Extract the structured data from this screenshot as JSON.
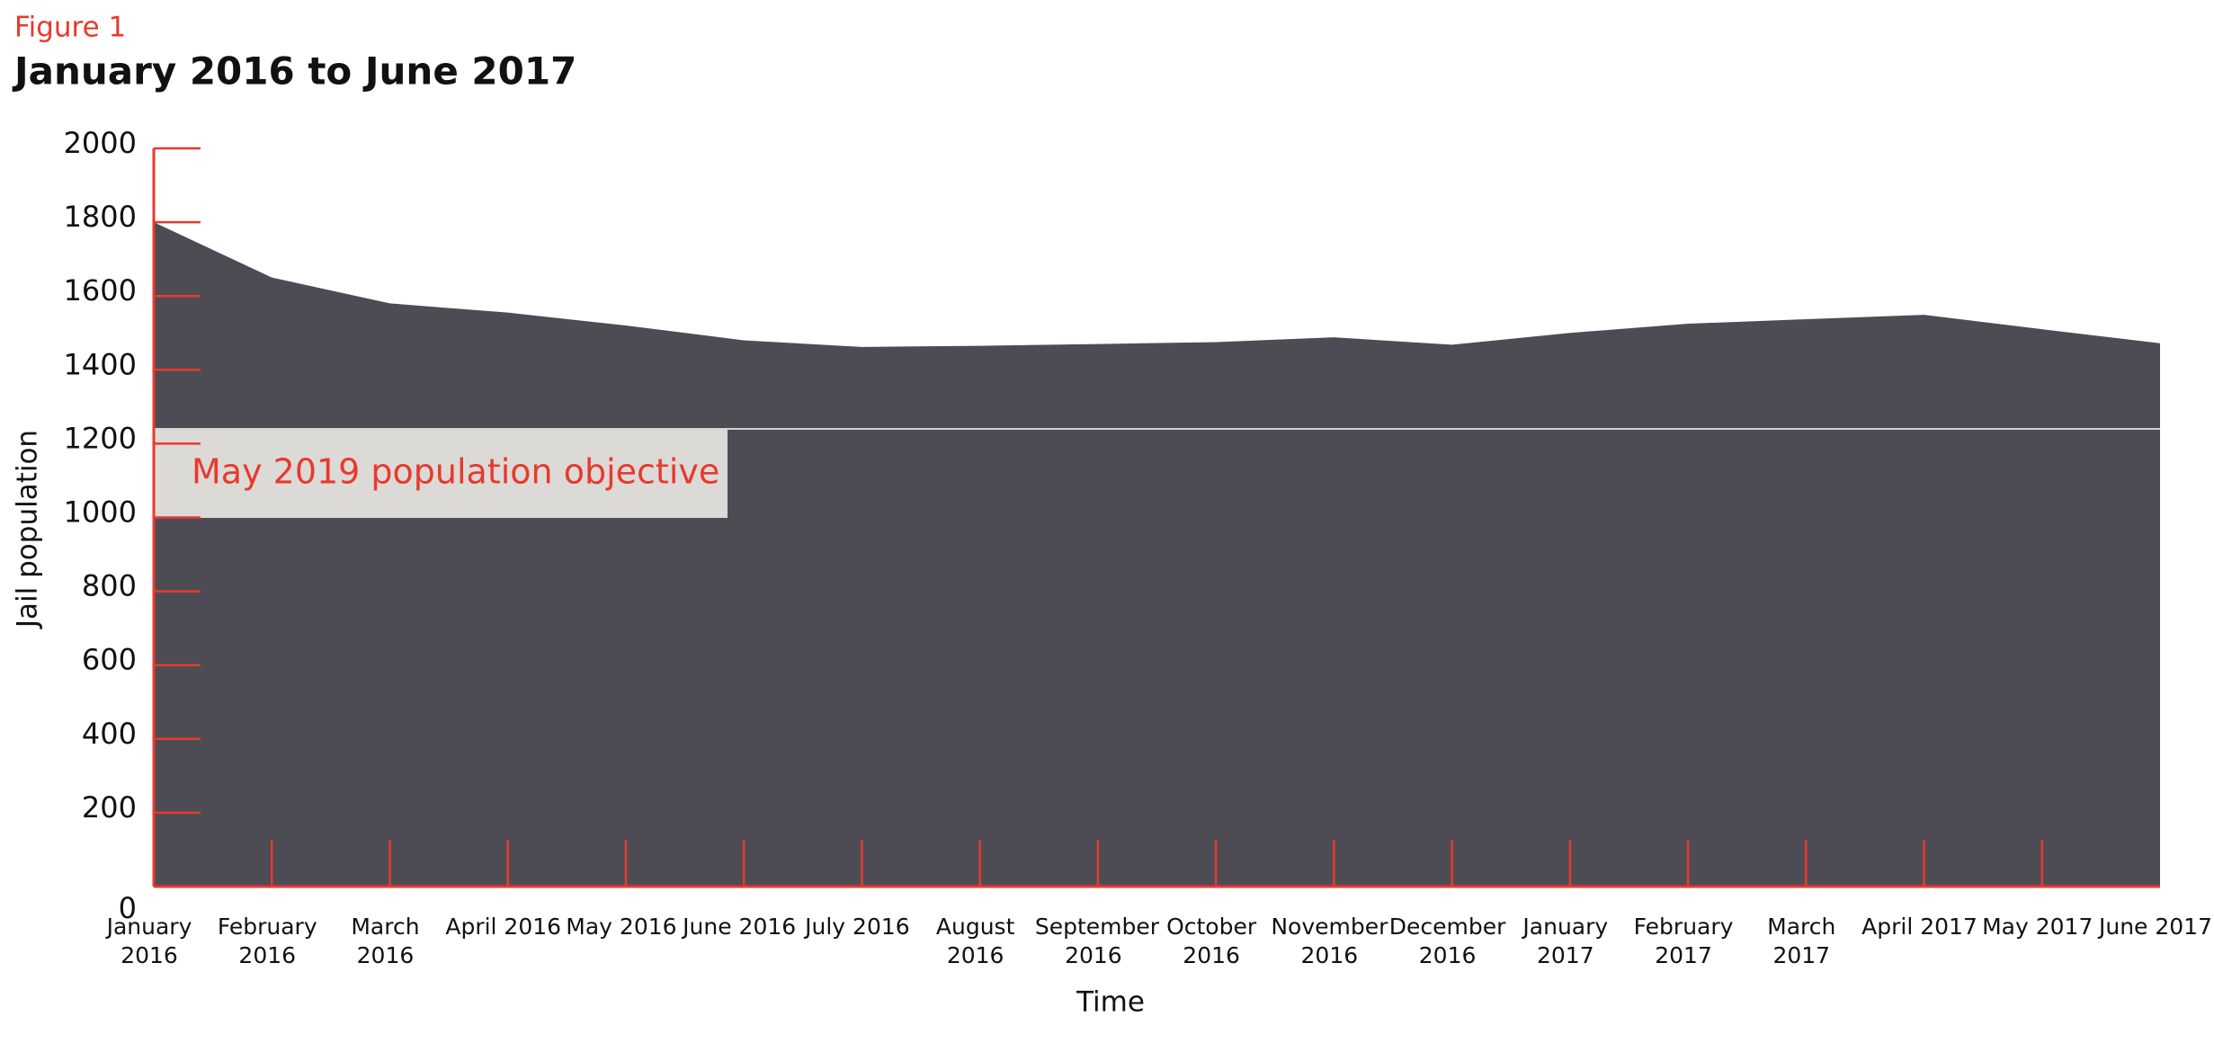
{
  "chart_data": {
    "type": "area",
    "figure_label": "Figure 1",
    "title": "January 2016 to June 2017",
    "xlabel": "Time",
    "ylabel": "Jail population",
    "categories": [
      "January 2016",
      "February 2016",
      "March 2016",
      "April 2016",
      "May 2016",
      "June 2016",
      "July 2016",
      "August 2016",
      "September 2016",
      "October 2016",
      "November 2016",
      "December 2016",
      "January 2017",
      "February 2017",
      "March 2017",
      "April 2017",
      "May 2017",
      "June 2017"
    ],
    "values": [
      1800,
      1650,
      1580,
      1555,
      1520,
      1480,
      1462,
      1465,
      1470,
      1475,
      1488,
      1468,
      1500,
      1525,
      1537,
      1549,
      1510,
      1472
    ],
    "color": "#4d4c55",
    "axis_color": "#e8392e",
    "ylim": [
      0,
      2000
    ],
    "yticks": [
      0,
      200,
      400,
      600,
      800,
      1000,
      1200,
      1400,
      1600,
      1800,
      2000
    ],
    "objective": {
      "label": "May 2019 population objective",
      "value": 1240
    }
  }
}
